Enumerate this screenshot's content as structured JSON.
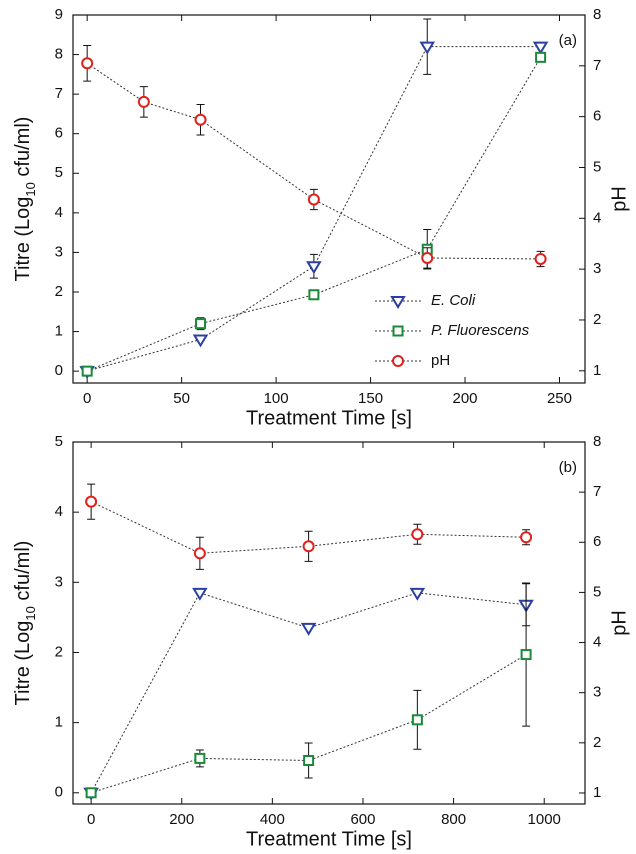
{
  "chart_data": [
    {
      "type": "line",
      "annotation": "(a)",
      "xlabel": "Treatment Time [s]",
      "ylabel": [
        "Titre (Log",
        "10",
        " cfu/ml)"
      ],
      "y2label": "pH",
      "xlim": [
        -7.5,
        263.5
      ],
      "xticks": [
        0,
        50,
        100,
        150,
        200,
        250
      ],
      "ylim": [
        -0.3,
        9
      ],
      "yticks": [
        0,
        1,
        2,
        3,
        4,
        5,
        6,
        7,
        8,
        9
      ],
      "y2lim": [
        0.76,
        8
      ],
      "y2ticks": [
        1,
        2,
        3,
        4,
        5,
        6,
        7,
        8
      ],
      "legend": "lower right",
      "series": [
        {
          "name": "E. Coli",
          "style": "italic",
          "color": "#2b3fa0",
          "marker": "triangle-down",
          "x": [
            0,
            60,
            120,
            180,
            240
          ],
          "values": [
            0,
            0.8,
            2.65,
            8.2,
            8.2
          ],
          "errors": [
            null,
            null,
            0.3,
            0.7,
            null
          ]
        },
        {
          "name": "P. Fluorescens",
          "style": "italic",
          "color": "#1a8a3a",
          "marker": "square",
          "x": [
            0,
            60,
            120,
            180,
            240
          ],
          "values": [
            0,
            1.2,
            1.93,
            3.08,
            7.93
          ],
          "errors": [
            null,
            0.15,
            null,
            0.5,
            null
          ]
        },
        {
          "name": "pH",
          "style": "normal",
          "color": "#e0201c",
          "marker": "circle",
          "axis": "y2",
          "x": [
            0,
            30,
            60,
            120,
            180,
            240
          ],
          "values": [
            7.05,
            6.29,
            5.94,
            4.37,
            3.22,
            3.2
          ],
          "errors": [
            0.35,
            0.3,
            0.3,
            0.2,
            0.2,
            0.15
          ]
        }
      ]
    },
    {
      "type": "line",
      "annotation": "(b)",
      "xlabel": "Treatment Time [s]",
      "ylabel": [
        "Titre (Log",
        "10",
        " cfu/ml)"
      ],
      "y2label": "pH",
      "xlim": [
        -40,
        1090
      ],
      "xticks": [
        0,
        200,
        400,
        600,
        800,
        1000
      ],
      "ylim": [
        -0.16,
        5
      ],
      "yticks": [
        0,
        1,
        2,
        3,
        4,
        5
      ],
      "y2lim": [
        0.78,
        8
      ],
      "y2ticks": [
        1,
        2,
        3,
        4,
        5,
        6,
        7,
        8
      ],
      "series": [
        {
          "color": "#2b3fa0",
          "marker": "triangle-down",
          "x": [
            0,
            240,
            480,
            720,
            960
          ],
          "values": [
            0,
            2.85,
            2.35,
            2.85,
            2.68
          ],
          "errors": [
            null,
            null,
            null,
            null,
            0.3
          ]
        },
        {
          "color": "#1a8a3a",
          "marker": "square",
          "x": [
            0,
            240,
            480,
            720,
            960
          ],
          "values": [
            0,
            0.49,
            0.46,
            1.04,
            1.97
          ],
          "errors": [
            null,
            0.12,
            0.25,
            0.42,
            1.02
          ]
        },
        {
          "color": "#e0201c",
          "marker": "circle",
          "axis": "y2",
          "x": [
            0,
            240,
            480,
            720,
            960
          ],
          "values": [
            6.81,
            5.78,
            5.92,
            6.16,
            6.1
          ],
          "errors": [
            0.35,
            0.32,
            0.3,
            0.2,
            0.15
          ]
        }
      ]
    }
  ]
}
